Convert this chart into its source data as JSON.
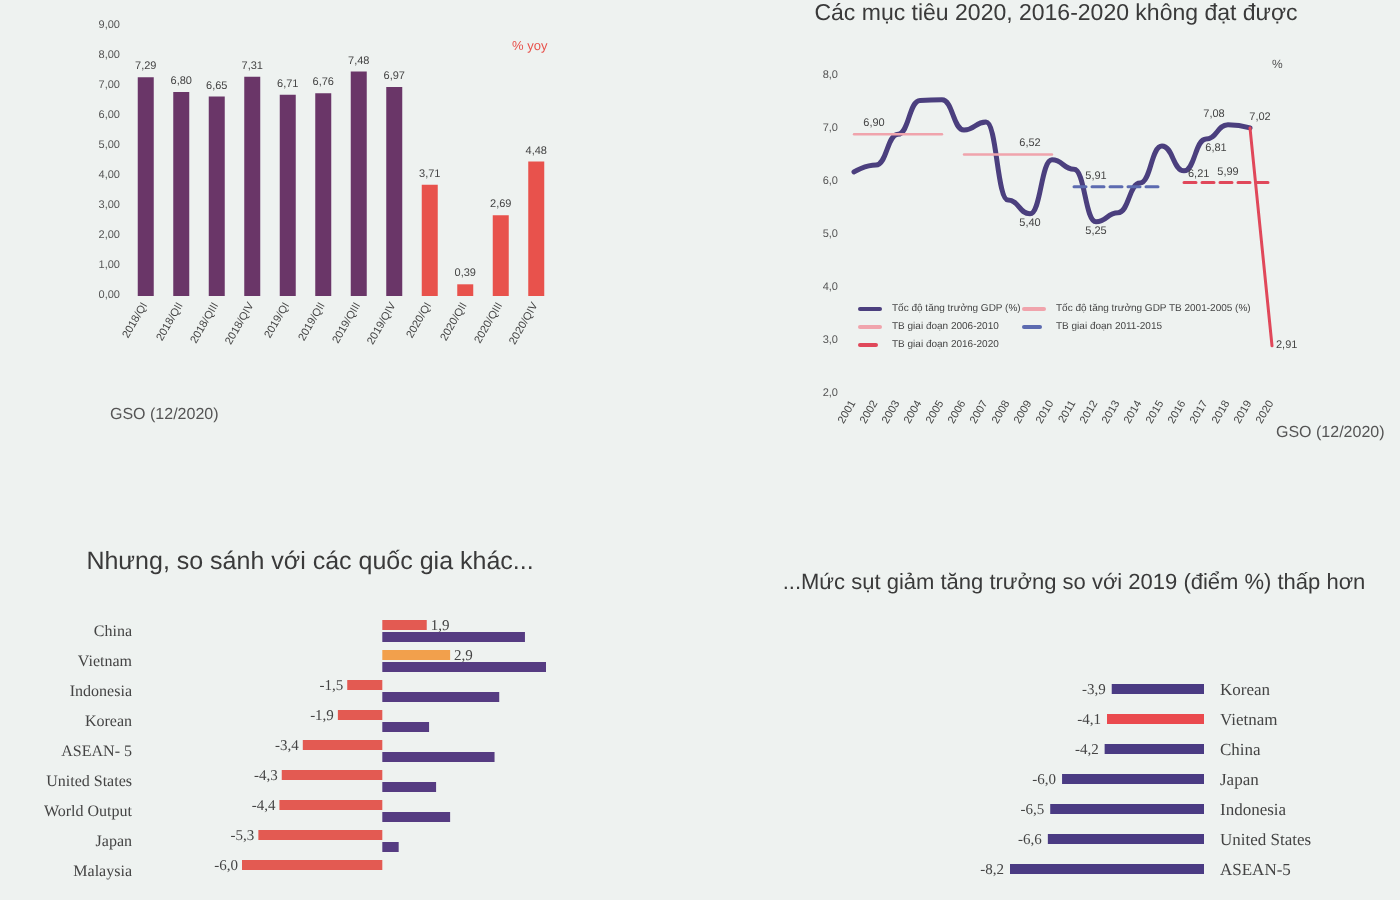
{
  "chart_data": [
    {
      "type": "bar",
      "categories": [
        "2018/QI",
        "2018/QII",
        "2018/QIII",
        "2018/QIV",
        "2019/QI",
        "2019/QII",
        "2019/QIII",
        "2019/QIV",
        "2020/QI",
        "2020/QII",
        "2020/QIII",
        "2020/QIV"
      ],
      "values": [
        7.29,
        6.8,
        6.65,
        7.31,
        6.71,
        6.76,
        7.48,
        6.97,
        3.71,
        0.39,
        2.69,
        4.48
      ],
      "colors": [
        "#6a3668",
        "#6a3668",
        "#6a3668",
        "#6a3668",
        "#6a3668",
        "#6a3668",
        "#6a3668",
        "#6a3668",
        "#e8524c",
        "#e8524c",
        "#e8524c",
        "#e8524c"
      ],
      "value_labels": [
        "7,29",
        "6,80",
        "6,65",
        "7,31",
        "6,71",
        "6,76",
        "7,48",
        "6,97",
        "3,71",
        "0,39",
        "2,69",
        "4,48"
      ],
      "ylim": [
        0,
        9
      ],
      "yticks": [
        {
          "value": 0,
          "label": "0,00"
        },
        {
          "value": 1,
          "label": "1,00"
        },
        {
          "value": 2,
          "label": "2,00"
        },
        {
          "value": 3,
          "label": "3,00"
        },
        {
          "value": 4,
          "label": "4,00"
        },
        {
          "value": 5,
          "label": "5,00"
        },
        {
          "value": 6,
          "label": "6,00"
        },
        {
          "value": 7,
          "label": "7,00"
        },
        {
          "value": 8,
          "label": "8,00"
        },
        {
          "value": 9,
          "label": "9,00"
        }
      ],
      "annotations": [
        "% yoy",
        "GSO (12/2020)"
      ]
    },
    {
      "type": "line",
      "title": "Các mục tiêu 2020, 2016-2020 không đạt được",
      "categories": [
        "2001",
        "2002",
        "2003",
        "2004",
        "2005",
        "2006",
        "2007",
        "2008",
        "2009",
        "2010",
        "2011",
        "2012",
        "2013",
        "2014",
        "2015",
        "2016",
        "2017",
        "2018",
        "2019",
        "2020"
      ],
      "ylim": [
        2,
        8
      ],
      "yticks": [
        {
          "value": 2,
          "label": "2,0"
        },
        {
          "value": 3,
          "label": "3,0"
        },
        {
          "value": 4,
          "label": "4,0"
        },
        {
          "value": 5,
          "label": "5,0"
        },
        {
          "value": 6,
          "label": "6,0"
        },
        {
          "value": 7,
          "label": "7,0"
        },
        {
          "value": 8,
          "label": "8,0"
        }
      ],
      "marker": "none",
      "legend": "bottom left",
      "annotations": [
        "%",
        "GSO (12/2020)"
      ],
      "series": [
        {
          "name": "Tốc độ tăng trưởng GDP (%)",
          "color": "#4b3f7e",
          "values": [
            6.19,
            6.32,
            6.9,
            7.54,
            7.55,
            6.98,
            7.13,
            5.66,
            5.4,
            6.42,
            6.24,
            5.25,
            5.42,
            5.98,
            6.68,
            6.21,
            6.81,
            7.08,
            7.02,
            null
          ],
          "value_labels": [
            null,
            null,
            null,
            null,
            null,
            null,
            null,
            null,
            "5,40",
            null,
            null,
            "5,25",
            null,
            null,
            null,
            "6,21",
            "6,81",
            "7,08",
            "7,02",
            null
          ]
        },
        {
          "name": "Tốc độ tăng trưởng GDP TB 2001-2005 (%)",
          "color": "#f0a4ac",
          "values": [
            6.9,
            6.9,
            6.9,
            6.9,
            6.9,
            null,
            null,
            null,
            null,
            null,
            null,
            null,
            null,
            null,
            null,
            null,
            null,
            null,
            null,
            null
          ],
          "value_labels": [
            "6,90",
            null,
            null,
            null,
            null,
            null,
            null,
            null,
            null,
            null,
            null,
            null,
            null,
            null,
            null,
            null,
            null,
            null,
            null,
            null
          ]
        },
        {
          "name": "TB giai đoạn 2006-2010",
          "color": "#f0a4ac",
          "values": [
            null,
            null,
            null,
            null,
            null,
            6.52,
            6.52,
            6.52,
            6.52,
            6.52,
            null,
            null,
            null,
            null,
            null,
            null,
            null,
            null,
            null,
            null
          ],
          "value_labels": [
            null,
            null,
            null,
            null,
            null,
            null,
            null,
            null,
            "6,52",
            null,
            null,
            null,
            null,
            null,
            null,
            null,
            null,
            null,
            null,
            null
          ]
        },
        {
          "name": "TB giai đoạn 2011-2015",
          "color": "#5c6bb0",
          "line_style": "dashed",
          "values": [
            null,
            null,
            null,
            null,
            null,
            null,
            null,
            null,
            null,
            null,
            5.91,
            5.91,
            5.91,
            5.91,
            5.91,
            null,
            null,
            null,
            null,
            null
          ],
          "value_labels": [
            null,
            null,
            null,
            null,
            null,
            null,
            null,
            null,
            null,
            null,
            null,
            "5,91",
            null,
            null,
            null,
            null,
            null,
            null,
            null,
            null
          ]
        },
        {
          "name": "TB giai đoạn 2016-2020",
          "color": "#e0485a",
          "line_style": "dashed",
          "values": [
            null,
            null,
            null,
            null,
            null,
            null,
            null,
            null,
            null,
            null,
            null,
            null,
            null,
            null,
            null,
            5.99,
            5.99,
            5.99,
            5.99,
            5.99
          ],
          "value_labels": [
            null,
            null,
            null,
            null,
            null,
            null,
            null,
            null,
            null,
            null,
            null,
            null,
            null,
            null,
            null,
            null,
            null,
            "5,99",
            null,
            null
          ]
        },
        {
          "color": "#e0485a",
          "values": [
            null,
            null,
            null,
            null,
            null,
            null,
            null,
            null,
            null,
            null,
            null,
            null,
            null,
            null,
            null,
            null,
            null,
            null,
            7.02,
            2.91
          ],
          "value_labels": [
            null,
            null,
            null,
            null,
            null,
            null,
            null,
            null,
            null,
            null,
            null,
            null,
            null,
            null,
            null,
            null,
            null,
            null,
            null,
            "2,91"
          ]
        }
      ]
    },
    {
      "type": "bar",
      "orientation": "horizontal",
      "title": "Nhưng, so sánh với các quốc gia khác...",
      "categories": [
        "China",
        "Vietnam",
        "Indonesia",
        "Korean",
        "ASEAN- 5",
        "United States",
        "World Output",
        "Japan",
        "Malaysia"
      ],
      "tick_labels": "y",
      "series": [
        {
          "colors": [
            "#e35a52",
            "#f2a04c",
            "#e35a52",
            "#e35a52",
            "#e35a52",
            "#e35a52",
            "#e35a52",
            "#e35a52",
            "#e35a52"
          ],
          "values": [
            1.9,
            2.9,
            -1.5,
            -1.9,
            -3.4,
            -4.3,
            -4.4,
            -5.3,
            -6.0
          ],
          "value_labels": [
            "1,9",
            "2,9",
            "-1,5",
            "-1,9",
            "-3,4",
            "-4,3",
            "-4,4",
            "-5,3",
            "-6,0"
          ]
        },
        {
          "color": "#563c82",
          "values": [
            6.1,
            7.0,
            5.0,
            2.0,
            4.8,
            2.3,
            2.9,
            0.7,
            null
          ]
        }
      ]
    },
    {
      "type": "bar",
      "orientation": "horizontal",
      "title": "...Mức sụt giảm tăng trưởng so với 2019 (điểm %) thấp hơn",
      "categories": [
        "Korean",
        "Vietnam",
        "China",
        "Japan",
        "Indonesia",
        "United States",
        "ASEAN-5"
      ],
      "values": [
        -3.9,
        -4.1,
        -4.2,
        -6.0,
        -6.5,
        -6.6,
        -8.2
      ],
      "colors": [
        "#4a3b83",
        "#ea4a4e",
        "#4a3b83",
        "#4a3b83",
        "#4a3b83",
        "#4a3b83",
        "#4a3b83"
      ],
      "value_labels": [
        "-3,9",
        "-4,1",
        "-4,2",
        "-6,0",
        "-6,5",
        "-6,6",
        "-8,2"
      ],
      "tick_labels": "y"
    }
  ]
}
